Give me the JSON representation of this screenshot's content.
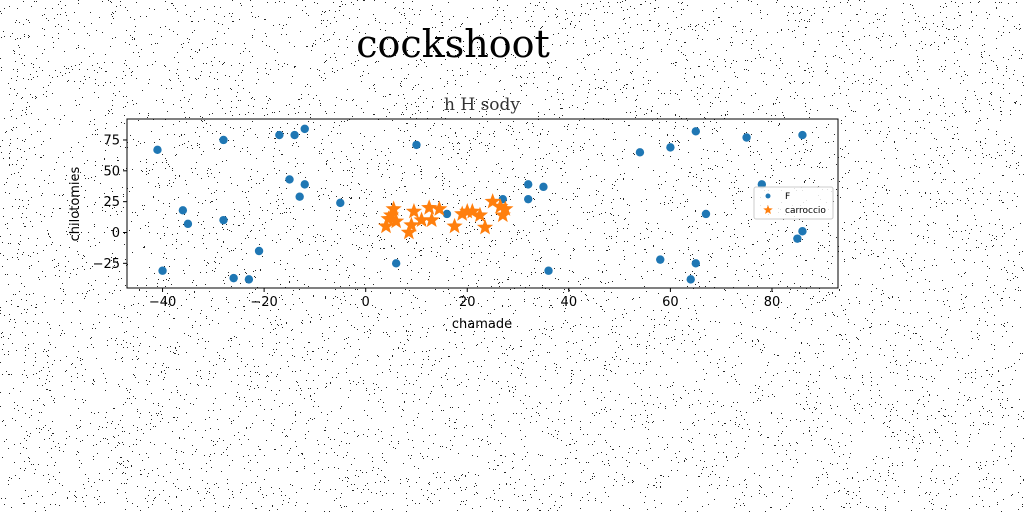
{
  "title": "cockshoot",
  "chart_data": {
    "type": "scatter",
    "title": "h H sody",
    "xlabel": "chamade",
    "ylabel": "chilotomies",
    "xlim": [
      -47,
      93
    ],
    "ylim": [
      -45,
      92
    ],
    "xticks": [
      -40,
      -20,
      0,
      20,
      40,
      60,
      80
    ],
    "yticks": [
      -25,
      0,
      25,
      50,
      75
    ],
    "grid": false,
    "legend": "center-right",
    "series": [
      {
        "name": "F",
        "marker": "circle",
        "color": "#1f77b4",
        "points": [
          [
            -41,
            67
          ],
          [
            -40,
            -31
          ],
          [
            -36,
            18
          ],
          [
            -35,
            7
          ],
          [
            -28,
            75
          ],
          [
            -28,
            10
          ],
          [
            -26,
            -37
          ],
          [
            -23,
            -38
          ],
          [
            -21,
            -15
          ],
          [
            -17,
            79
          ],
          [
            -15,
            43
          ],
          [
            -14,
            79
          ],
          [
            -13,
            29
          ],
          [
            -12,
            84
          ],
          [
            -12,
            39
          ],
          [
            -5,
            24
          ],
          [
            6,
            -25
          ],
          [
            10,
            71
          ],
          [
            16,
            15
          ],
          [
            27,
            27
          ],
          [
            32,
            39
          ],
          [
            32,
            27
          ],
          [
            35,
            37
          ],
          [
            36,
            -31
          ],
          [
            54,
            65
          ],
          [
            58,
            -22
          ],
          [
            60,
            69
          ],
          [
            64,
            -38
          ],
          [
            65,
            82
          ],
          [
            65,
            -25
          ],
          [
            67,
            15
          ],
          [
            75,
            77
          ],
          [
            78,
            39
          ],
          [
            85,
            -5
          ],
          [
            86,
            79
          ],
          [
            86,
            1
          ]
        ]
      },
      {
        "name": "carroccio",
        "marker": "star",
        "color": "#ff7f0e",
        "points": [
          [
            4,
            5
          ],
          [
            4.5,
            11
          ],
          [
            5,
            14
          ],
          [
            5.5,
            19
          ],
          [
            6,
            9
          ],
          [
            8.5,
            0
          ],
          [
            9,
            6
          ],
          [
            9.5,
            17
          ],
          [
            11,
            10
          ],
          [
            12.5,
            20
          ],
          [
            13,
            10
          ],
          [
            14.5,
            19
          ],
          [
            17.5,
            5
          ],
          [
            19,
            15
          ],
          [
            20,
            17
          ],
          [
            21,
            17
          ],
          [
            22.5,
            14
          ],
          [
            23.5,
            4
          ],
          [
            25,
            25
          ],
          [
            26.5,
            21
          ],
          [
            27,
            14
          ],
          [
            27.5,
            19
          ]
        ]
      }
    ]
  }
}
